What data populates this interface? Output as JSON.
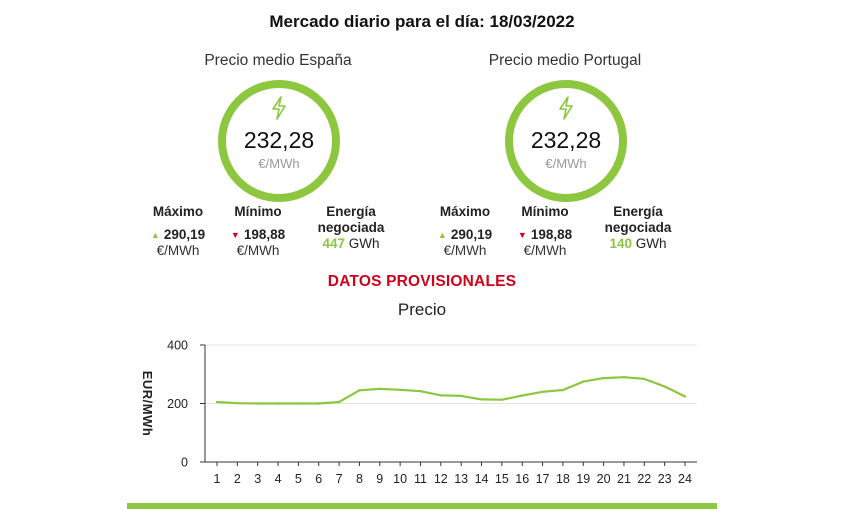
{
  "title": "Mercado diario para el día: 18/03/2022",
  "spain": {
    "label": "Precio medio España",
    "price": "232,28",
    "unit": "€/MWh",
    "max_label": "Máximo",
    "max_value": "290,19",
    "max_unit": "€/MWh",
    "min_label": "Mínimo",
    "min_value": "198,88",
    "min_unit": "€/MWh",
    "energy_label_1": "Energía",
    "energy_label_2": "negociada",
    "energy_value": "447",
    "energy_unit": "GWh"
  },
  "portugal": {
    "label": "Precio medio Portugal",
    "price": "232,28",
    "unit": "€/MWh",
    "max_label": "Máximo",
    "max_value": "290,19",
    "max_unit": "€/MWh",
    "min_label": "Mínimo",
    "min_value": "198,88",
    "min_unit": "€/MWh",
    "energy_label_1": "Energía",
    "energy_label_2": "negociada",
    "energy_value": "140",
    "energy_unit": "GWh"
  },
  "icons": {
    "price": "lightning-bolt-icon",
    "up": "triangle-up-icon",
    "down": "triangle-down-icon"
  },
  "colors": {
    "accent": "#8dc63f",
    "alert": "#d0021b",
    "muted": "#999999"
  },
  "provisional_notice": "DATOS PROVISIONALES",
  "chart_data": {
    "type": "line",
    "title": "Precio",
    "ylabel": "EUR/MWh",
    "xlabel": "",
    "ylim": [
      0,
      400
    ],
    "yticks": [
      0,
      200,
      400
    ],
    "grid": true,
    "x": [
      1,
      2,
      3,
      4,
      5,
      6,
      7,
      8,
      9,
      10,
      11,
      12,
      13,
      14,
      15,
      16,
      17,
      18,
      19,
      20,
      21,
      22,
      23,
      24
    ],
    "series": [
      {
        "color": "#8dc63f",
        "values": [
          205,
          201,
          200,
          200,
          200,
          200,
          205,
          245,
          250,
          247,
          242,
          228,
          226,
          214,
          213,
          227,
          240,
          246,
          275,
          287,
          290,
          284,
          258,
          224
        ]
      }
    ]
  }
}
